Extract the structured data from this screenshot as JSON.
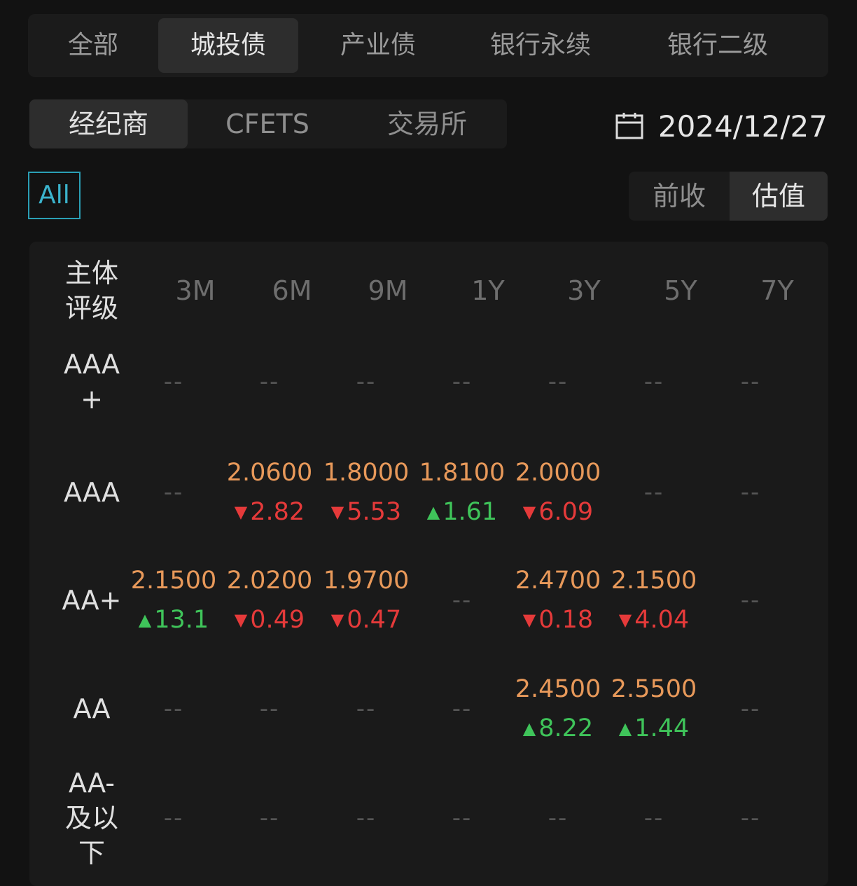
{
  "category_tabs": [
    {
      "label": "全部"
    },
    {
      "label": "城投债",
      "active": true
    },
    {
      "label": "产业债"
    },
    {
      "label": "银行永续"
    },
    {
      "label": "银行二级"
    }
  ],
  "source_tabs": [
    {
      "label": "经纪商",
      "active": true
    },
    {
      "label": "CFETS"
    },
    {
      "label": "交易所"
    }
  ],
  "date": {
    "icon": "calendar-icon",
    "value": "2024/12/27"
  },
  "filter": {
    "label": "All",
    "color": "#2a9fb5"
  },
  "value_toggle": [
    {
      "label": "前收"
    },
    {
      "label": "估值",
      "active": true
    }
  ],
  "table": {
    "row_header_label": "主体评级",
    "columns": [
      "3M",
      "6M",
      "9M",
      "1Y",
      "3Y",
      "5Y",
      "7Y"
    ],
    "empty": "--",
    "rows": [
      {
        "rating": "AAA+",
        "cells": [
          null,
          null,
          null,
          null,
          null,
          null,
          null
        ]
      },
      {
        "rating": "AAA",
        "cells": [
          null,
          {
            "value": "2.0600",
            "change": "2.82",
            "dir": "down"
          },
          {
            "value": "1.8000",
            "change": "5.53",
            "dir": "down"
          },
          {
            "value": "1.8100",
            "change": "1.61",
            "dir": "up"
          },
          {
            "value": "2.0000",
            "change": "6.09",
            "dir": "down"
          },
          null,
          null
        ]
      },
      {
        "rating": "AA+",
        "cells": [
          {
            "value": "2.1500",
            "change": "13.1",
            "dir": "up"
          },
          {
            "value": "2.0200",
            "change": "0.49",
            "dir": "down"
          },
          {
            "value": "1.9700",
            "change": "0.47",
            "dir": "down"
          },
          null,
          {
            "value": "2.4700",
            "change": "0.18",
            "dir": "down"
          },
          {
            "value": "2.1500",
            "change": "4.04",
            "dir": "down"
          },
          null
        ]
      },
      {
        "rating": "AA",
        "cells": [
          null,
          null,
          null,
          null,
          {
            "value": "2.4500",
            "change": "8.22",
            "dir": "up"
          },
          {
            "value": "2.5500",
            "change": "1.44",
            "dir": "up"
          },
          null
        ]
      },
      {
        "rating": "AA-及以下",
        "cells": [
          null,
          null,
          null,
          null,
          null,
          null,
          null
        ]
      }
    ]
  },
  "colors": {
    "value": "#e8995a",
    "down": "#e53a3a",
    "up": "#3fc45a",
    "background": "#121212"
  }
}
